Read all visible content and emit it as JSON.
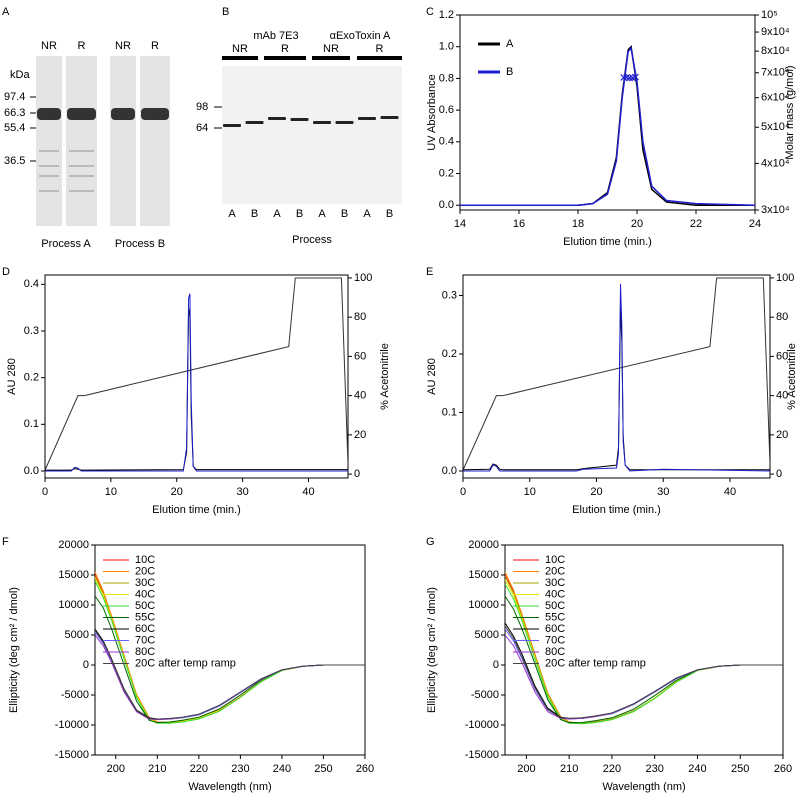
{
  "gels": [
    {
      "panel_label": "A",
      "lane_labels": [
        "NR",
        "R",
        "NR",
        "R"
      ],
      "unit": "kDa",
      "markers": [
        "97.4",
        "66.3",
        "55.4",
        "36.5"
      ],
      "groups": [
        "Process A",
        "Process B"
      ]
    },
    {
      "panel_label": "B",
      "groups": [
        "mAb 7E3",
        "αExoToxin A"
      ],
      "lane_labels": [
        "NR",
        "R",
        "NR",
        "R"
      ],
      "unit": "kDa",
      "markers": [
        "98",
        "64"
      ],
      "sample_labels": [
        "A",
        "B",
        "A",
        "B",
        "A",
        "B",
        "A",
        "B"
      ],
      "x_label": "Process"
    }
  ],
  "chart_data": [
    {
      "type": "line",
      "panel_label": "C",
      "x_label": "Elution time (min.)",
      "y_label": "UV Absorbance",
      "y2_label": "Molar mass (g/mol)",
      "xlim": [
        14,
        24
      ],
      "xticks": [
        14,
        16,
        18,
        20,
        22,
        24
      ],
      "ylim": [
        -0.03,
        1.2
      ],
      "yticks": [
        {
          "value": 0,
          "label": "0.0"
        },
        0.2,
        0.4,
        0.6,
        0.8,
        {
          "value": 1,
          "label": "1.0"
        },
        1.2
      ],
      "y2_scale": "log",
      "y2lim": [
        30000,
        100000
      ],
      "y2ticks": [
        {
          "value": 30000,
          "label": "3x10⁴"
        },
        {
          "value": 40000,
          "label": "4x10⁴"
        },
        {
          "value": 50000,
          "label": "5x10⁴"
        },
        {
          "value": 60000,
          "label": "6x10⁴"
        },
        {
          "value": 70000,
          "label": "7x10⁴"
        },
        {
          "value": 80000,
          "label": "8x10⁴"
        },
        {
          "value": 90000,
          "label": "9x10⁴"
        },
        {
          "value": 100000,
          "label": "10⁵"
        }
      ],
      "legend": "upper-left",
      "series": [
        {
          "name": "A",
          "color": "#000000",
          "x": [
            14,
            16,
            18,
            18.5,
            19,
            19.3,
            19.5,
            19.7,
            19.8,
            20,
            20.2,
            20.5,
            21,
            22,
            24
          ],
          "values": [
            0,
            0,
            0,
            0.01,
            0.08,
            0.3,
            0.7,
            0.98,
            1.0,
            0.75,
            0.35,
            0.1,
            0.02,
            0,
            0
          ]
        },
        {
          "name": "B",
          "color": "#1f1fd0",
          "x": [
            14,
            16,
            18,
            18.5,
            19,
            19.3,
            19.5,
            19.7,
            19.8,
            20,
            20.2,
            20.5,
            21,
            22,
            24
          ],
          "values": [
            0,
            0,
            0,
            0.01,
            0.07,
            0.28,
            0.68,
            0.97,
            0.99,
            0.78,
            0.4,
            0.12,
            0.03,
            0.01,
            0
          ]
        },
        {
          "color": "#1f1fd0",
          "axis": "y2",
          "marker": true,
          "x": [
            19.55,
            19.65,
            19.75,
            19.85,
            19.95
          ],
          "values": [
            68000,
            68000,
            67800,
            67800,
            68200
          ]
        }
      ]
    },
    {
      "type": "line",
      "panel_label": "D",
      "x_label": "Elution time (min.)",
      "y_label": "AU 280",
      "y2_label": "% Acetonitrile",
      "xlim": [
        0,
        46
      ],
      "xticks": [
        0,
        10,
        20,
        30,
        40
      ],
      "ylim": [
        -0.015,
        0.42
      ],
      "yticks": [
        {
          "value": 0,
          "label": "0.0"
        },
        0.1,
        0.2,
        0.3,
        0.4
      ],
      "y2lim": [
        -2,
        101.5
      ],
      "y2ticks": [
        0,
        20,
        40,
        60,
        80,
        100
      ],
      "series": [
        {
          "color": "#333333",
          "axis": "y2",
          "x": [
            0,
            5,
            6,
            37,
            38,
            45,
            46
          ],
          "values": [
            2,
            40,
            40,
            65,
            100,
            100,
            5
          ]
        },
        {
          "color": "#000000",
          "x": [
            0,
            4,
            4.5,
            5,
            5.5,
            6,
            21,
            21.5,
            21.8,
            22,
            22.2,
            22.5,
            23,
            46
          ],
          "values": [
            0.002,
            0.002,
            0.005,
            0.004,
            0.002,
            0.002,
            0.003,
            0.04,
            0.35,
            0.33,
            0.12,
            0.01,
            0.003,
            0.003
          ]
        },
        {
          "color": "#1f1fd0",
          "x": [
            0,
            4,
            4.5,
            5,
            5.5,
            6,
            21,
            21.5,
            21.8,
            22,
            22.2,
            22.5,
            23,
            46
          ],
          "values": [
            0,
            0,
            0.008,
            0.006,
            0,
            0,
            0,
            0.05,
            0.37,
            0.38,
            0.15,
            0.01,
            0,
            0
          ]
        }
      ]
    },
    {
      "type": "line",
      "panel_label": "E",
      "x_label": "Elution time (min.)",
      "y_label": "AU 280",
      "y2_label": "% Acetonitrile",
      "xlim": [
        0,
        46
      ],
      "xticks": [
        0,
        10,
        20,
        30,
        40
      ],
      "ylim": [
        -0.012,
        0.335
      ],
      "yticks": [
        {
          "value": 0,
          "label": "0.0"
        },
        0.1,
        0.2,
        0.3
      ],
      "y2lim": [
        -2,
        101.5
      ],
      "y2ticks": [
        0,
        20,
        40,
        60,
        80,
        100
      ],
      "series": [
        {
          "color": "#333333",
          "axis": "y2",
          "x": [
            0,
            5,
            6,
            37,
            38,
            45,
            46
          ],
          "values": [
            2,
            40,
            40,
            65,
            100,
            100,
            5
          ]
        },
        {
          "color": "#000000",
          "x": [
            0,
            4,
            4.5,
            5,
            5.5,
            6,
            17,
            18,
            23,
            23.3,
            23.6,
            23.8,
            24,
            24.3,
            25,
            30,
            46
          ],
          "values": [
            0.002,
            0.003,
            0.012,
            0.01,
            0.003,
            0.002,
            0.002,
            0.004,
            0.01,
            0.04,
            0.28,
            0.22,
            0.06,
            0.01,
            0.002,
            0.002,
            0.002
          ]
        },
        {
          "color": "#1f1fd0",
          "x": [
            0,
            4,
            4.5,
            5,
            5.5,
            6,
            17,
            18,
            23,
            23.3,
            23.6,
            23.8,
            24,
            24.3,
            25,
            30,
            46
          ],
          "values": [
            0,
            0,
            0.01,
            0.008,
            0,
            0,
            0,
            0.003,
            0.005,
            0.03,
            0.32,
            0.25,
            0.05,
            0.01,
            0,
            0.003,
            0
          ]
        }
      ]
    },
    {
      "type": "line",
      "panel_label": "F",
      "x_label": "Wavelength (nm)",
      "y_label": "Ellipticity (deg cm² / dmol)",
      "xlim": [
        195,
        260
      ],
      "xticks": [
        200,
        210,
        220,
        230,
        240,
        250,
        260
      ],
      "ylim": [
        -15000,
        20000
      ],
      "yticks": [
        -15000,
        -10000,
        -5000,
        0,
        5000,
        10000,
        15000,
        20000
      ],
      "legend": "upper-left",
      "x": [
        195,
        197,
        199,
        202,
        205,
        208,
        210,
        213,
        216,
        220,
        225,
        230,
        235,
        240,
        245,
        250,
        255,
        260
      ],
      "series": [
        {
          "name": "10C",
          "color": "#ff0000",
          "values": [
            15000,
            12000,
            8000,
            1500,
            -5000,
            -8800,
            -9500,
            -9600,
            -9300,
            -8800,
            -7500,
            -5300,
            -2700,
            -900,
            -200,
            0,
            0,
            0
          ]
        },
        {
          "name": "20C",
          "color": "#ff8000",
          "values": [
            15500,
            12300,
            8200,
            1600,
            -4900,
            -8700,
            -9500,
            -9600,
            -9300,
            -8800,
            -7500,
            -5300,
            -2700,
            -900,
            -200,
            0,
            0,
            0
          ]
        },
        {
          "name": "30C",
          "color": "#a0a000",
          "values": [
            14800,
            11800,
            7800,
            1300,
            -5100,
            -8900,
            -9600,
            -9700,
            -9400,
            -8900,
            -7600,
            -5400,
            -2700,
            -900,
            -200,
            0,
            0,
            0
          ]
        },
        {
          "name": "40C",
          "color": "#e8e800",
          "values": [
            14500,
            11600,
            7700,
            1200,
            -5200,
            -9000,
            -9600,
            -9700,
            -9400,
            -8900,
            -7600,
            -5400,
            -2800,
            -900,
            -200,
            0,
            0,
            0
          ]
        },
        {
          "name": "50C",
          "color": "#33dd33",
          "values": [
            14000,
            11200,
            7400,
            1000,
            -5400,
            -9100,
            -9700,
            -9700,
            -9500,
            -9000,
            -7700,
            -5400,
            -2800,
            -900,
            -200,
            0,
            0,
            0
          ]
        },
        {
          "name": "55C",
          "color": "#006400",
          "values": [
            11500,
            9500,
            6000,
            0,
            -6000,
            -9200,
            -9600,
            -9500,
            -9200,
            -8700,
            -7300,
            -5000,
            -2500,
            -800,
            -200,
            0,
            0,
            0
          ]
        },
        {
          "name": "60C",
          "color": "#000000",
          "values": [
            6000,
            4000,
            1000,
            -4000,
            -7500,
            -8800,
            -9000,
            -9000,
            -8800,
            -8300,
            -6800,
            -4600,
            -2400,
            -800,
            -200,
            0,
            0,
            0
          ]
        },
        {
          "name": "70C",
          "color": "#6666ff",
          "values": [
            5500,
            3600,
            700,
            -4300,
            -7700,
            -8900,
            -9100,
            -9000,
            -8800,
            -8300,
            -6800,
            -4600,
            -2400,
            -800,
            -200,
            0,
            0,
            0
          ]
        },
        {
          "name": "80C",
          "color": "#9933cc",
          "values": [
            5000,
            3200,
            400,
            -4500,
            -7800,
            -9000,
            -9100,
            -9000,
            -8700,
            -8200,
            -6700,
            -4500,
            -2300,
            -800,
            -200,
            0,
            0,
            0
          ]
        },
        {
          "name": "20C after temp ramp",
          "color": "#444444",
          "values": [
            5800,
            3800,
            900,
            -4100,
            -7600,
            -8900,
            -9000,
            -8900,
            -8700,
            -8200,
            -6700,
            -4500,
            -2300,
            -800,
            -200,
            0,
            0,
            0
          ]
        }
      ]
    },
    {
      "type": "line",
      "panel_label": "G",
      "x_label": "Wavelength (nm)",
      "y_label": "Ellipticity (deg cm² / dmol)",
      "xlim": [
        195,
        260
      ],
      "xticks": [
        200,
        210,
        220,
        230,
        240,
        250,
        260
      ],
      "ylim": [
        -15000,
        20000
      ],
      "yticks": [
        -15000,
        -10000,
        -5000,
        0,
        5000,
        10000,
        15000,
        20000
      ],
      "legend": "upper-left",
      "x": [
        195,
        197,
        199,
        202,
        205,
        208,
        210,
        213,
        216,
        220,
        225,
        230,
        235,
        240,
        245,
        250,
        255,
        260
      ],
      "series": [
        {
          "name": "10C",
          "color": "#ff0000",
          "values": [
            15000,
            12200,
            8200,
            1700,
            -4800,
            -8700,
            -9500,
            -9700,
            -9500,
            -9000,
            -7700,
            -5500,
            -2800,
            -900,
            -200,
            0,
            0,
            0
          ]
        },
        {
          "name": "20C",
          "color": "#ff8000",
          "values": [
            15500,
            12500,
            8400,
            1800,
            -4700,
            -8600,
            -9500,
            -9700,
            -9500,
            -9000,
            -7700,
            -5500,
            -2800,
            -900,
            -200,
            0,
            0,
            0
          ]
        },
        {
          "name": "30C",
          "color": "#a0a000",
          "values": [
            14800,
            12000,
            8000,
            1500,
            -4900,
            -8800,
            -9600,
            -9700,
            -9500,
            -9000,
            -7700,
            -5500,
            -2800,
            -900,
            -200,
            0,
            0,
            0
          ]
        },
        {
          "name": "40C",
          "color": "#e8e800",
          "values": [
            14200,
            11600,
            7700,
            1300,
            -5100,
            -8900,
            -9600,
            -9800,
            -9600,
            -9100,
            -7800,
            -5500,
            -2800,
            -900,
            -200,
            0,
            0,
            0
          ]
        },
        {
          "name": "50C",
          "color": "#33dd33",
          "values": [
            13500,
            11000,
            7300,
            1000,
            -5300,
            -9000,
            -9700,
            -9800,
            -9600,
            -9100,
            -7800,
            -5600,
            -2900,
            -900,
            -200,
            0,
            0,
            0
          ]
        },
        {
          "name": "55C",
          "color": "#006400",
          "values": [
            11500,
            9300,
            6000,
            200,
            -5800,
            -9100,
            -9600,
            -9600,
            -9300,
            -8800,
            -7400,
            -5100,
            -2600,
            -800,
            -200,
            0,
            0,
            0
          ]
        },
        {
          "name": "60C",
          "color": "#000000",
          "values": [
            7000,
            4800,
            1800,
            -3500,
            -7200,
            -8700,
            -8900,
            -8900,
            -8600,
            -8100,
            -6600,
            -4500,
            -2300,
            -800,
            -200,
            0,
            0,
            0
          ]
        },
        {
          "name": "70C",
          "color": "#6666ff",
          "values": [
            6000,
            4000,
            1000,
            -4000,
            -7500,
            -8800,
            -9000,
            -8900,
            -8600,
            -8100,
            -6600,
            -4500,
            -2300,
            -800,
            -200,
            0,
            0,
            0
          ]
        },
        {
          "name": "80C",
          "color": "#9933cc",
          "values": [
            5000,
            3200,
            300,
            -4500,
            -7800,
            -8900,
            -9000,
            -8900,
            -8600,
            -8000,
            -6500,
            -4400,
            -2200,
            -800,
            -200,
            0,
            0,
            0
          ]
        },
        {
          "name": "20C after temp ramp",
          "color": "#444444",
          "values": [
            6500,
            4400,
            1300,
            -3800,
            -7400,
            -8800,
            -8900,
            -8800,
            -8500,
            -8000,
            -6500,
            -4400,
            -2200,
            -800,
            -200,
            0,
            0,
            0
          ]
        }
      ]
    }
  ]
}
